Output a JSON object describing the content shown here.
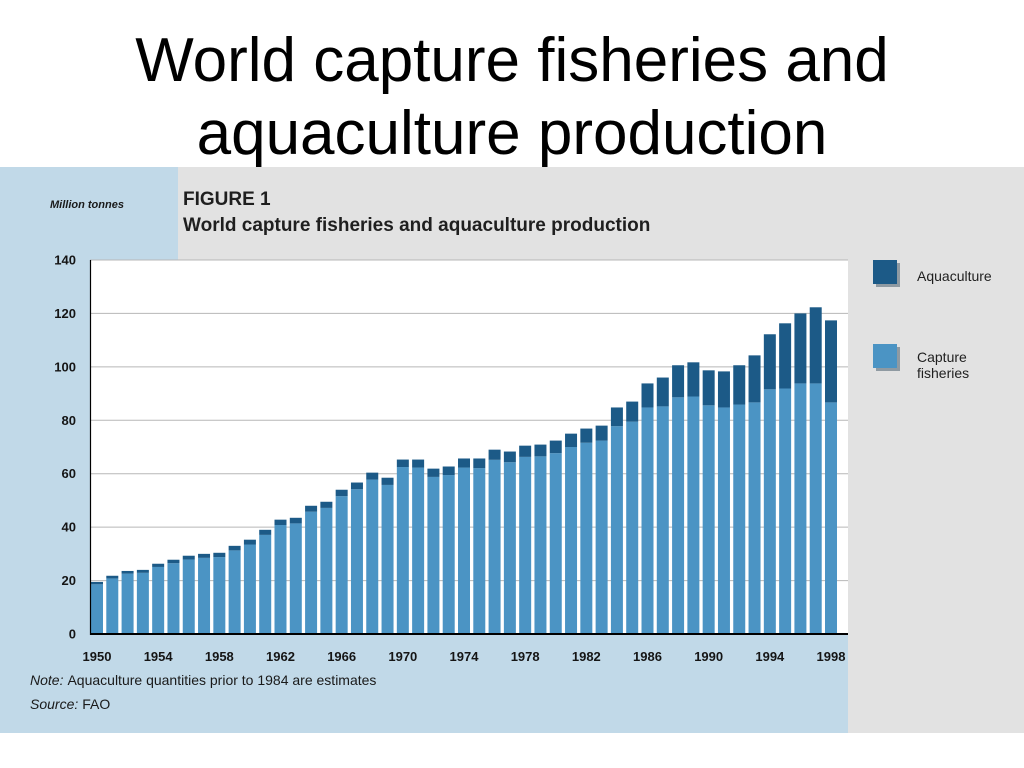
{
  "slide": {
    "title": "World capture fisheries and aquaculture production"
  },
  "colors": {
    "panel": "#c1d9e8",
    "panel_alt": "#e2e2e2",
    "plot_background": "#ffffff",
    "gridline": "#b7b7b7"
  },
  "chart_data": {
    "type": "bar",
    "stacked": true,
    "figure_label": "FIGURE 1",
    "title": "World capture fisheries and aquaculture production",
    "ylabel": "Million tonnes",
    "xlabel": "",
    "ylim": [
      0,
      140
    ],
    "yticks": [
      0,
      20,
      40,
      60,
      80,
      100,
      120,
      140
    ],
    "xticks": [
      "1950",
      "1954",
      "1958",
      "1962",
      "1966",
      "1970",
      "1974",
      "1978",
      "1982",
      "1986",
      "1990",
      "1994",
      "1998"
    ],
    "x": [
      1950,
      1951,
      1952,
      1953,
      1954,
      1955,
      1956,
      1957,
      1958,
      1959,
      1960,
      1961,
      1962,
      1963,
      1964,
      1965,
      1966,
      1967,
      1968,
      1969,
      1970,
      1971,
      1972,
      1973,
      1974,
      1975,
      1976,
      1977,
      1978,
      1979,
      1980,
      1981,
      1982,
      1983,
      1984,
      1985,
      1986,
      1987,
      1988,
      1989,
      1990,
      1991,
      1992,
      1993,
      1994,
      1995,
      1996,
      1997,
      1998
    ],
    "series": [
      {
        "name": "Capture fisheries",
        "color": "#4b94c4",
        "values": [
          18.6,
          20.8,
          22.6,
          22.9,
          25.1,
          26.5,
          27.9,
          28.5,
          28.8,
          31.3,
          33.5,
          37.1,
          40.8,
          41.4,
          45.8,
          47.2,
          51.6,
          54.2,
          57.8,
          55.8,
          62.5,
          62.3,
          58.8,
          59.5,
          62.3,
          62.1,
          65.2,
          64.3,
          66.3,
          66.5,
          67.7,
          70.0,
          71.6,
          72.4,
          77.8,
          79.5,
          84.8,
          85.2,
          88.6,
          88.9,
          85.6,
          84.8,
          85.9,
          86.7,
          91.6,
          91.9,
          93.8,
          93.8,
          86.7
        ]
      },
      {
        "name": "Aquaculture",
        "color": "#1c5a87",
        "values": [
          0.9,
          1.0,
          1.0,
          1.1,
          1.2,
          1.3,
          1.4,
          1.5,
          1.6,
          1.7,
          1.8,
          1.9,
          2.0,
          2.1,
          2.2,
          2.3,
          2.4,
          2.5,
          2.6,
          2.7,
          2.8,
          3.0,
          3.1,
          3.2,
          3.4,
          3.6,
          3.8,
          4.0,
          4.2,
          4.4,
          4.7,
          5.0,
          5.3,
          5.6,
          7.0,
          7.5,
          9.0,
          10.8,
          12.0,
          12.8,
          13.1,
          13.5,
          14.7,
          17.6,
          20.6,
          24.4,
          26.2,
          28.5,
          30.7
        ]
      }
    ],
    "legend": "right",
    "grid": true,
    "note": {
      "label": "Note:",
      "text": "Aquaculture quantities prior to 1984 are estimates"
    },
    "source": {
      "label": "Source:",
      "text": "FAO"
    }
  }
}
